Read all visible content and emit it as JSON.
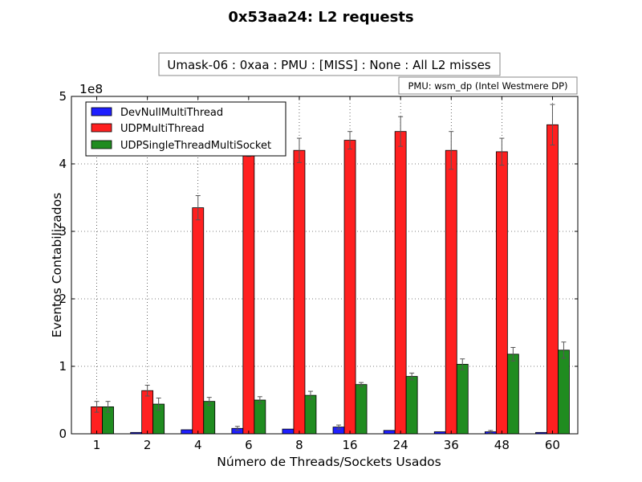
{
  "chart_data": {
    "type": "bar",
    "title": "0x53aa24: L2 requests",
    "subtitle": "Umask-06 : 0xaa : PMU : [MISS] : None : All L2 misses",
    "pmu_note": "PMU: wsm_dp (Intel Westmere DP)",
    "xlabel": "Número de Threads/Sockets Usados",
    "ylabel": "Eventos Contabilizados",
    "y_scale_label": "1e8",
    "y_scale": 100000000,
    "ylim": [
      0,
      500000000
    ],
    "yticks": [
      0,
      1,
      2,
      3,
      4,
      5
    ],
    "categories": [
      "1",
      "2",
      "4",
      "6",
      "8",
      "16",
      "24",
      "36",
      "48",
      "60"
    ],
    "grid": true,
    "legend_position": "top-left",
    "series": [
      {
        "name": "DevNullMultiThread",
        "color": "#1f1fff",
        "values": [
          0,
          2000000,
          6000000,
          8000000,
          7000000,
          10000000,
          5000000,
          3000000,
          3000000,
          2000000
        ],
        "errors": [
          0,
          0,
          0,
          3000000,
          0,
          3000000,
          0,
          0,
          2000000,
          0
        ]
      },
      {
        "name": "UDPMultiThread",
        "color": "#ff2020",
        "values": [
          40000000,
          64000000,
          335000000,
          423000000,
          420000000,
          435000000,
          448000000,
          420000000,
          418000000,
          458000000
        ],
        "errors": [
          8000000,
          8000000,
          18000000,
          12000000,
          18000000,
          13000000,
          22000000,
          28000000,
          20000000,
          30000000
        ]
      },
      {
        "name": "UDPSingleThreadMultiSocket",
        "color": "#208c20",
        "values": [
          40000000,
          44000000,
          48000000,
          50000000,
          57000000,
          73000000,
          85000000,
          103000000,
          118000000,
          124000000
        ],
        "errors": [
          8000000,
          9000000,
          6000000,
          5000000,
          6000000,
          3000000,
          5000000,
          8000000,
          10000000,
          12000000
        ]
      }
    ]
  }
}
